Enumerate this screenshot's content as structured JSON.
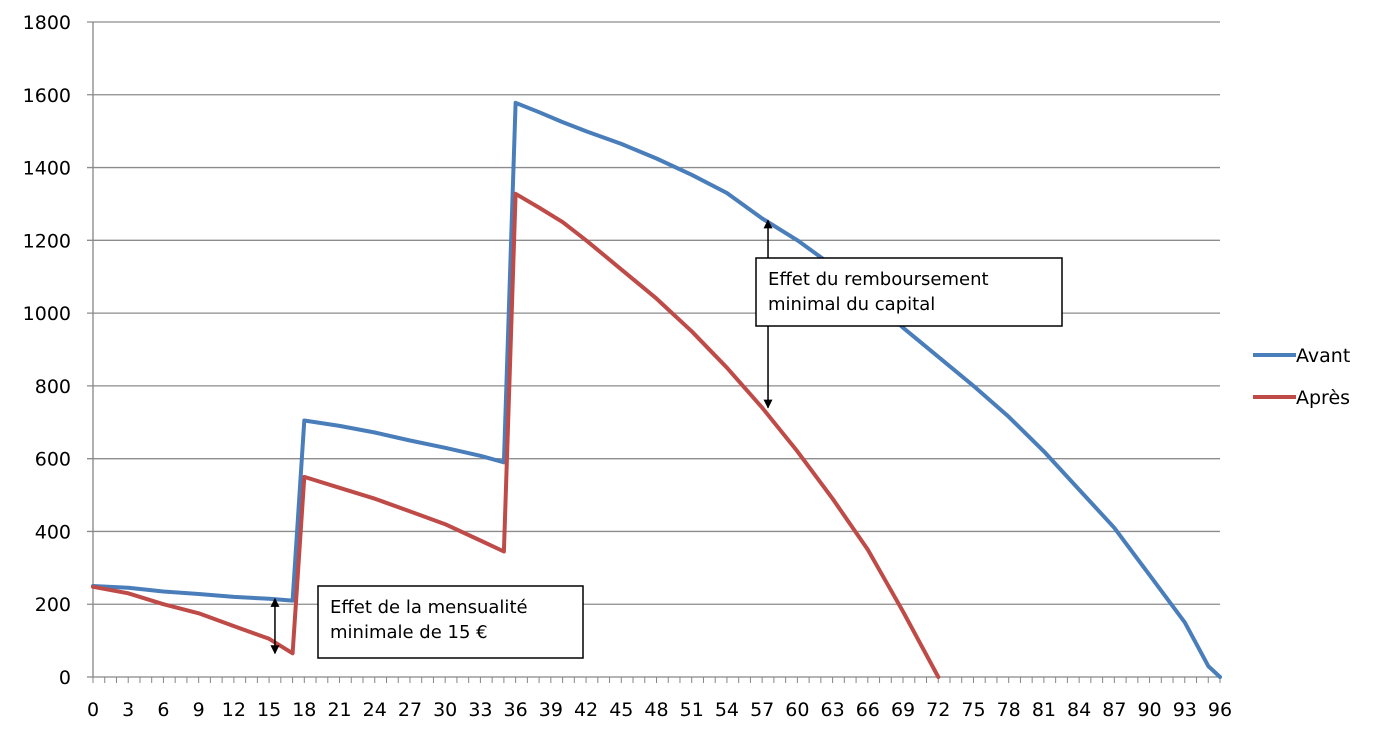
{
  "chart_data": {
    "type": "line",
    "title": "",
    "xlabel": "",
    "ylabel": "",
    "xlim": [
      0,
      96
    ],
    "ylim": [
      0,
      1800
    ],
    "y_ticks": [
      "0",
      "200",
      "400",
      "600",
      "800",
      "1000",
      "1200",
      "1400",
      "1600",
      "1800"
    ],
    "x_tick_labels": [
      "0",
      "3",
      "6",
      "9",
      "12",
      "15",
      "18",
      "21",
      "24",
      "27",
      "30",
      "33",
      "36",
      "39",
      "42",
      "45",
      "48",
      "51",
      "54",
      "57",
      "60",
      "63",
      "66",
      "69",
      "72",
      "75",
      "78",
      "81",
      "84",
      "87",
      "90",
      "93",
      "96"
    ],
    "grid": "horizontal",
    "legend_position": "right",
    "series": [
      {
        "name": "Avant",
        "color": "#4a7ebb",
        "points": [
          [
            0,
            250
          ],
          [
            3,
            245
          ],
          [
            6,
            235
          ],
          [
            9,
            228
          ],
          [
            12,
            220
          ],
          [
            15,
            215
          ],
          [
            17,
            210
          ],
          [
            18,
            705
          ],
          [
            21,
            690
          ],
          [
            24,
            672
          ],
          [
            27,
            650
          ],
          [
            30,
            630
          ],
          [
            33,
            608
          ],
          [
            35,
            590
          ],
          [
            36,
            1578
          ],
          [
            38,
            1552
          ],
          [
            40,
            1525
          ],
          [
            42,
            1500
          ],
          [
            45,
            1465
          ],
          [
            48,
            1425
          ],
          [
            51,
            1380
          ],
          [
            54,
            1330
          ],
          [
            57,
            1260
          ],
          [
            60,
            1200
          ],
          [
            63,
            1130
          ],
          [
            66,
            1050
          ],
          [
            69,
            960
          ],
          [
            72,
            880
          ],
          [
            75,
            800
          ],
          [
            78,
            715
          ],
          [
            81,
            620
          ],
          [
            84,
            515
          ],
          [
            87,
            410
          ],
          [
            90,
            280
          ],
          [
            93,
            150
          ],
          [
            95,
            30
          ],
          [
            96,
            0
          ]
        ]
      },
      {
        "name": "Après",
        "color": "#be4b48",
        "points": [
          [
            0,
            248
          ],
          [
            3,
            230
          ],
          [
            6,
            200
          ],
          [
            9,
            175
          ],
          [
            12,
            140
          ],
          [
            15,
            105
          ],
          [
            17,
            65
          ],
          [
            18,
            550
          ],
          [
            21,
            520
          ],
          [
            24,
            490
          ],
          [
            27,
            455
          ],
          [
            30,
            420
          ],
          [
            33,
            375
          ],
          [
            35,
            345
          ],
          [
            36,
            1328
          ],
          [
            38,
            1290
          ],
          [
            40,
            1250
          ],
          [
            42,
            1200
          ],
          [
            45,
            1120
          ],
          [
            48,
            1040
          ],
          [
            51,
            950
          ],
          [
            54,
            850
          ],
          [
            57,
            740
          ],
          [
            60,
            620
          ],
          [
            63,
            490
          ],
          [
            66,
            350
          ],
          [
            69,
            180
          ],
          [
            72,
            0
          ]
        ]
      }
    ],
    "annotations": [
      {
        "id": "mensualite",
        "lines": [
          "Effet de la mensualité",
          "minimale de 15 €"
        ],
        "arrow_x": 15.5,
        "arrow_y_from": 65,
        "arrow_y_to": 215
      },
      {
        "id": "remboursement",
        "lines": [
          "Effet du remboursement",
          "minimal du capital"
        ],
        "arrow_x": 57.5,
        "arrow_y_from": 740,
        "arrow_y_to": 1255
      }
    ]
  }
}
